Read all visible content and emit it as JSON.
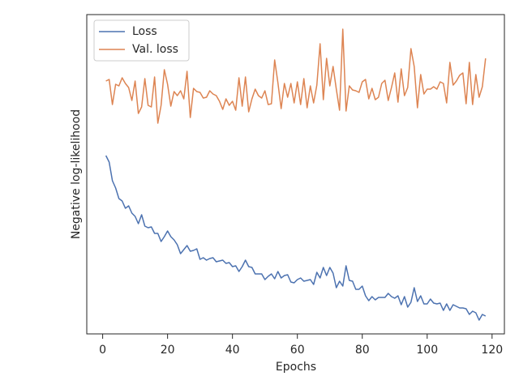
{
  "chart_data": {
    "type": "line",
    "xlabel": "Epochs",
    "ylabel": "Negative log-likelihood",
    "x": [
      1,
      2,
      3,
      4,
      5,
      6,
      7,
      8,
      9,
      10,
      11,
      12,
      13,
      14,
      15,
      16,
      17,
      18,
      19,
      20,
      21,
      22,
      23,
      24,
      25,
      26,
      27,
      28,
      29,
      30,
      31,
      32,
      33,
      34,
      35,
      36,
      37,
      38,
      39,
      40,
      41,
      42,
      43,
      44,
      45,
      46,
      47,
      48,
      49,
      50,
      51,
      52,
      53,
      54,
      55,
      56,
      57,
      58,
      59,
      60,
      61,
      62,
      63,
      64,
      65,
      66,
      67,
      68,
      69,
      70,
      71,
      72,
      73,
      74,
      75,
      76,
      77,
      78,
      79,
      80,
      81,
      82,
      83,
      84,
      85,
      86,
      87,
      88,
      89,
      90,
      91,
      92,
      93,
      94,
      95,
      96,
      97,
      98,
      99,
      100,
      101,
      102,
      103,
      104,
      105,
      106,
      107,
      108,
      109,
      110,
      111,
      112,
      113,
      114,
      115,
      116,
      117,
      118
    ],
    "series": [
      {
        "name": "Loss",
        "color": "#4c72b0",
        "values": [
          220,
          212,
          189,
          180,
          167,
          164,
          155,
          158,
          149,
          145,
          136,
          147,
          133,
          131,
          132,
          124,
          124,
          114,
          120,
          127,
          120,
          116,
          110,
          99,
          104,
          109,
          102,
          103,
          105,
          92,
          94,
          91,
          93,
          94,
          89,
          90,
          91,
          87,
          88,
          83,
          84,
          77,
          83,
          91,
          83,
          82,
          74,
          74,
          74,
          67,
          71,
          74,
          68,
          77,
          69,
          72,
          73,
          64,
          63,
          67,
          69,
          65,
          66,
          67,
          61,
          76,
          69,
          82,
          72,
          82,
          75,
          57,
          65,
          59,
          84,
          66,
          65,
          55,
          55,
          59,
          47,
          41,
          46,
          42,
          45,
          45,
          45,
          50,
          46,
          44,
          47,
          36,
          46,
          33,
          39,
          57,
          40,
          47,
          37,
          37,
          43,
          38,
          37,
          38,
          29,
          37,
          29,
          36,
          34,
          32,
          32,
          31,
          24,
          28,
          26,
          17,
          24,
          22
        ]
      },
      {
        "name": "Val. loss",
        "color": "#dd8452",
        "values": [
          312,
          314,
          283,
          308,
          306,
          316,
          309,
          304,
          288,
          312,
          272,
          280,
          315,
          282,
          280,
          317,
          260,
          282,
          326,
          308,
          281,
          299,
          294,
          300,
          290,
          324,
          267,
          303,
          299,
          298,
          291,
          292,
          300,
          296,
          294,
          287,
          277,
          290,
          282,
          287,
          276,
          316,
          281,
          317,
          274,
          290,
          302,
          294,
          291,
          300,
          283,
          284,
          338,
          310,
          278,
          309,
          292,
          309,
          285,
          311,
          283,
          315,
          279,
          306,
          285,
          307,
          358,
          289,
          340,
          306,
          330,
          302,
          276,
          376,
          275,
          306,
          301,
          300,
          298,
          311,
          314,
          290,
          303,
          289,
          292,
          309,
          313,
          288,
          304,
          322,
          286,
          327,
          294,
          304,
          352,
          330,
          279,
          320,
          296,
          302,
          302,
          305,
          302,
          311,
          309,
          285,
          335,
          307,
          312,
          319,
          322,
          284,
          335,
          283,
          320,
          292,
          305,
          340
        ]
      }
    ],
    "xlim": [
      -4.9,
      123.8
    ],
    "xticks": [
      0,
      20,
      40,
      60,
      80,
      100,
      120
    ],
    "ylim": [
      0,
      394
    ],
    "legend": "upper left"
  }
}
